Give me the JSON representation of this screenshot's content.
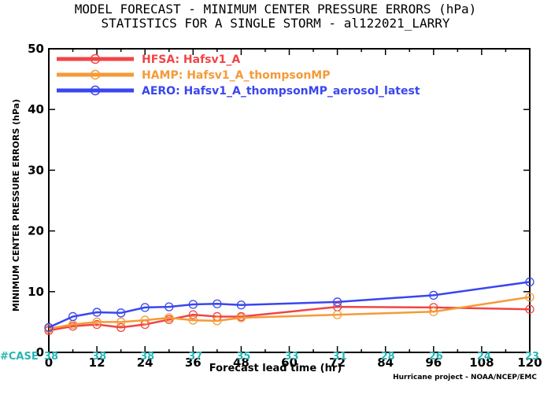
{
  "title_line1": "MODEL FORECAST - MINIMUM CENTER PRESSURE ERRORS (hPa)",
  "title_line2": "STATISTICS FOR A SINGLE STORM - al122021_LARRY",
  "credit": "Hurricane project - NOAA/NCEP/EMC",
  "case_label": "#CASE",
  "chart_data": {
    "type": "line",
    "xlabel": "Forecast lead time (hr)",
    "ylabel": "MINIMUM CENTER PRESSURE ERRORS (hPa)",
    "xlim": [
      0,
      120
    ],
    "ylim": [
      0,
      50
    ],
    "xticks": [
      0,
      12,
      24,
      36,
      48,
      60,
      72,
      84,
      96,
      108,
      120
    ],
    "yticks": [
      0,
      10,
      20,
      30,
      40,
      50
    ],
    "grid": false,
    "legend_position": "top-left",
    "case_counts": [
      38,
      38,
      38,
      37,
      35,
      33,
      31,
      28,
      26,
      24,
      23
    ],
    "series": [
      {
        "name": "HFSA: Hafsv1_A",
        "color": "#f04545",
        "x": [
          0,
          6,
          12,
          18,
          24,
          30,
          36,
          42,
          48,
          72,
          96,
          120
        ],
        "y": [
          3.6,
          4.3,
          4.6,
          4.1,
          4.6,
          5.4,
          6.2,
          5.9,
          5.9,
          7.5,
          7.4,
          7.1
        ]
      },
      {
        "name": "HAMP: Hafsv1_A_thompsonMP",
        "color": "#f59a38",
        "x": [
          0,
          6,
          12,
          18,
          24,
          30,
          36,
          42,
          48,
          72,
          96,
          120
        ],
        "y": [
          3.9,
          4.6,
          5.0,
          5.0,
          5.3,
          5.7,
          5.3,
          5.2,
          5.7,
          6.2,
          6.7,
          9.1
        ]
      },
      {
        "name": "AERO: Hafsv1_A_thompsonMP_aerosol_latest",
        "color": "#3a46ef",
        "x": [
          0,
          6,
          12,
          18,
          24,
          30,
          36,
          42,
          48,
          72,
          96,
          120
        ],
        "y": [
          4.1,
          5.9,
          6.6,
          6.5,
          7.4,
          7.5,
          7.9,
          8.0,
          7.8,
          8.3,
          9.4,
          11.6
        ]
      }
    ]
  }
}
